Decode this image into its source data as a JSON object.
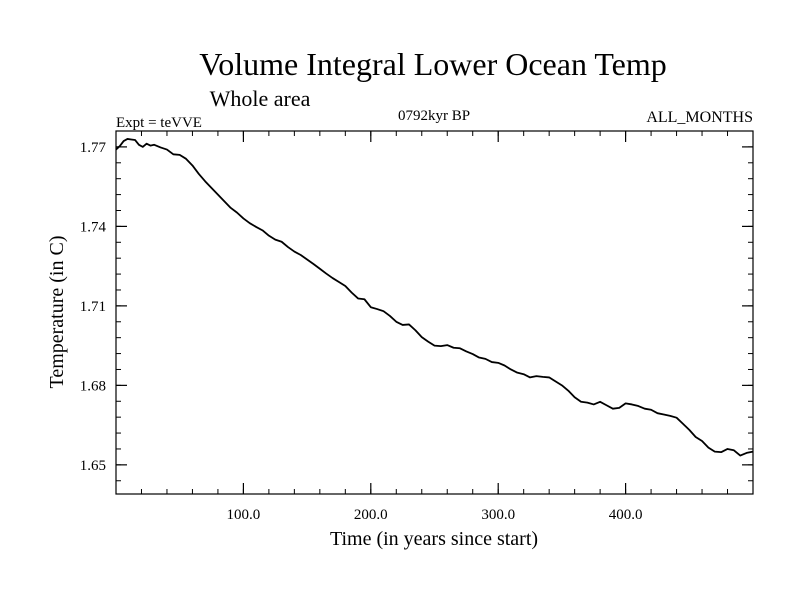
{
  "chart_data": {
    "type": "line",
    "title": "Volume Integral Lower Ocean Temp",
    "subtitle": "Whole area",
    "header_left": "Expt = teVVE",
    "header_center": "0792kyr BP",
    "header_right": "ALL_MONTHS",
    "xlabel": "Time (in years since start)",
    "ylabel": "Temperature (in C)",
    "xlim": [
      0,
      500
    ],
    "ylim": [
      1.639,
      1.776
    ],
    "x_ticks": [
      {
        "value": 100,
        "label": "100.0"
      },
      {
        "value": 200,
        "label": "200.0"
      },
      {
        "value": 300,
        "label": "300.0"
      },
      {
        "value": 400,
        "label": "400.0"
      }
    ],
    "y_ticks": [
      {
        "value": 1.77,
        "label": "1.77"
      },
      {
        "value": 1.74,
        "label": "1.74"
      },
      {
        "value": 1.71,
        "label": "1.71"
      },
      {
        "value": 1.68,
        "label": "1.68"
      },
      {
        "value": 1.65,
        "label": "1.65"
      }
    ],
    "x_minor_step": 20,
    "y_minor_step": 0.006,
    "series": [
      {
        "name": "Volume Integral Lower Ocean Temp",
        "x": [
          0,
          3,
          6,
          9,
          12,
          15,
          18,
          21,
          24,
          27,
          30,
          35,
          40,
          45,
          50,
          55,
          60,
          65,
          70,
          75,
          80,
          85,
          90,
          95,
          100,
          105,
          110,
          115,
          120,
          125,
          130,
          135,
          140,
          145,
          150,
          155,
          160,
          165,
          170,
          175,
          180,
          185,
          190,
          195,
          200,
          205,
          210,
          215,
          220,
          225,
          230,
          235,
          240,
          245,
          250,
          255,
          260,
          265,
          270,
          275,
          280,
          285,
          290,
          295,
          300,
          305,
          310,
          315,
          320,
          325,
          330,
          335,
          340,
          345,
          350,
          355,
          360,
          365,
          370,
          375,
          380,
          385,
          390,
          395,
          400,
          405,
          410,
          415,
          420,
          425,
          430,
          435,
          440,
          445,
          450,
          455,
          460,
          465,
          470,
          475,
          480,
          485,
          490,
          495,
          500
        ],
        "values": [
          1.769,
          1.7703,
          1.7722,
          1.773,
          1.7728,
          1.7726,
          1.7708,
          1.77,
          1.7712,
          1.7705,
          1.7708,
          1.7698,
          1.769,
          1.7672,
          1.767,
          1.7655,
          1.763,
          1.7598,
          1.757,
          1.7545,
          1.752,
          1.7495,
          1.747,
          1.7452,
          1.743,
          1.7412,
          1.7398,
          1.7385,
          1.7365,
          1.735,
          1.7342,
          1.7322,
          1.7305,
          1.7292,
          1.7275,
          1.7258,
          1.724,
          1.7222,
          1.7205,
          1.719,
          1.7175,
          1.715,
          1.7128,
          1.7125,
          1.7095,
          1.7088,
          1.708,
          1.7062,
          1.704,
          1.7028,
          1.703,
          1.7008,
          1.6982,
          1.6965,
          1.695,
          1.6948,
          1.6952,
          1.6942,
          1.694,
          1.6928,
          1.6918,
          1.6905,
          1.69,
          1.6888,
          1.6885,
          1.6875,
          1.686,
          1.6848,
          1.6842,
          1.683,
          1.6835,
          1.6832,
          1.683,
          1.6815,
          1.68,
          1.678,
          1.6755,
          1.6738,
          1.6735,
          1.6728,
          1.6738,
          1.6725,
          1.6712,
          1.6715,
          1.6732,
          1.6728,
          1.6722,
          1.6712,
          1.6708,
          1.6695,
          1.669,
          1.6685,
          1.6678,
          1.6655,
          1.6632,
          1.6605,
          1.659,
          1.6565,
          1.655,
          1.6548,
          1.656,
          1.6555,
          1.6535,
          1.6545,
          1.655
        ]
      }
    ]
  }
}
